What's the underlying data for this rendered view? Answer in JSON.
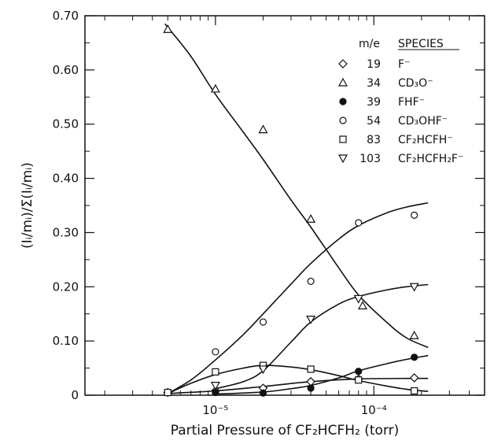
{
  "chart_data": {
    "type": "scatter",
    "xlabel": "Partial Pressure of CF₂HCFH₂ (torr)",
    "ylabel": "(Iᵢ/mᵢ)/Σ(Iᵢ/mᵢ)",
    "x_scale": "log",
    "xlim": [
      1.5e-06,
      0.0005
    ],
    "ylim": [
      0,
      0.7
    ],
    "x_ticks": [
      {
        "value": 1e-05,
        "label": "10⁻⁵"
      },
      {
        "value": 0.0001,
        "label": "10⁻⁴"
      }
    ],
    "y_ticks": [
      {
        "value": 0.0,
        "label": "0"
      },
      {
        "value": 0.1,
        "label": "0.10"
      },
      {
        "value": 0.2,
        "label": "0.20"
      },
      {
        "value": 0.3,
        "label": "0.30"
      },
      {
        "value": 0.4,
        "label": "0.40"
      },
      {
        "value": 0.5,
        "label": "0.50"
      },
      {
        "value": 0.6,
        "label": "0.60"
      },
      {
        "value": 0.7,
        "label": "0.70"
      }
    ],
    "legend": {
      "position": "top-right",
      "header_me": "m/e",
      "header_species": "SPECIES"
    },
    "series": [
      {
        "me": "19",
        "name": "F⁻",
        "marker": "diamond",
        "filled": false,
        "x": [
          5e-06,
          1e-05,
          2e-05,
          4e-05,
          8e-05,
          0.00018
        ],
        "y": [
          0.005,
          0.008,
          0.013,
          0.025,
          0.03,
          0.032
        ],
        "curve": [
          [
            5e-06,
            0.003
          ],
          [
            1e-05,
            0.008
          ],
          [
            2e-05,
            0.016
          ],
          [
            4e-05,
            0.025
          ],
          [
            8e-05,
            0.03
          ],
          [
            0.00016,
            0.031
          ],
          [
            0.00022,
            0.031
          ]
        ]
      },
      {
        "me": "34",
        "name": "CD₃O⁻",
        "marker": "triangle-up",
        "filled": false,
        "x": [
          5e-06,
          1e-05,
          2e-05,
          4e-05,
          8.5e-05,
          0.00018
        ],
        "y": [
          0.675,
          0.565,
          0.49,
          0.325,
          0.165,
          0.11
        ],
        "curve": [
          [
            4.8e-06,
            0.685
          ],
          [
            7e-06,
            0.625
          ],
          [
            1e-05,
            0.555
          ],
          [
            1.5e-05,
            0.485
          ],
          [
            2e-05,
            0.435
          ],
          [
            3e-05,
            0.36
          ],
          [
            4e-05,
            0.31
          ],
          [
            6e-05,
            0.235
          ],
          [
            8e-05,
            0.185
          ],
          [
            0.00012,
            0.135
          ],
          [
            0.00016,
            0.106
          ],
          [
            0.00022,
            0.088
          ]
        ]
      },
      {
        "me": "39",
        "name": "FHF⁻",
        "marker": "circle",
        "filled": true,
        "x": [
          1e-05,
          2e-05,
          4e-05,
          8e-05,
          0.00018
        ],
        "y": [
          0.005,
          0.004,
          0.013,
          0.044,
          0.07
        ],
        "curve": [
          [
            1e-05,
            0.002
          ],
          [
            2e-05,
            0.006
          ],
          [
            3e-05,
            0.012
          ],
          [
            4e-05,
            0.018
          ],
          [
            6e-05,
            0.032
          ],
          [
            8e-05,
            0.045
          ],
          [
            0.00012,
            0.058
          ],
          [
            0.00016,
            0.066
          ],
          [
            0.00022,
            0.073
          ]
        ]
      },
      {
        "me": "54",
        "name": "CD₃OHF⁻",
        "marker": "circle",
        "filled": false,
        "x": [
          5e-06,
          1e-05,
          2e-05,
          4e-05,
          8e-05,
          0.00018
        ],
        "y": [
          0.005,
          0.08,
          0.135,
          0.21,
          0.318,
          0.332
        ],
        "curve": [
          [
            5e-06,
            0.003
          ],
          [
            7e-06,
            0.028
          ],
          [
            1e-05,
            0.065
          ],
          [
            1.5e-05,
            0.112
          ],
          [
            2e-05,
            0.15
          ],
          [
            3e-05,
            0.205
          ],
          [
            4e-05,
            0.243
          ],
          [
            6e-05,
            0.288
          ],
          [
            8e-05,
            0.313
          ],
          [
            0.00012,
            0.336
          ],
          [
            0.00016,
            0.347
          ],
          [
            0.00022,
            0.355
          ]
        ]
      },
      {
        "me": "83",
        "name": "CF₂HCFH⁻",
        "marker": "square",
        "filled": false,
        "x": [
          5e-06,
          1e-05,
          2e-05,
          4e-05,
          8e-05,
          0.00018
        ],
        "y": [
          0.005,
          0.043,
          0.055,
          0.048,
          0.028,
          0.008
        ],
        "curve": [
          [
            5e-06,
            0.003
          ],
          [
            7e-06,
            0.022
          ],
          [
            1e-05,
            0.038
          ],
          [
            1.5e-05,
            0.05
          ],
          [
            2e-05,
            0.055
          ],
          [
            3e-05,
            0.052
          ],
          [
            4e-05,
            0.047
          ],
          [
            6e-05,
            0.036
          ],
          [
            8e-05,
            0.027
          ],
          [
            0.00012,
            0.017
          ],
          [
            0.00016,
            0.011
          ],
          [
            0.00022,
            0.007
          ]
        ]
      },
      {
        "me": "103",
        "name": "CF₂HCFH₂F⁻",
        "marker": "triangle-down",
        "filled": false,
        "x": [
          1e-05,
          2e-05,
          4e-05,
          8e-05,
          0.00018
        ],
        "y": [
          0.018,
          0.048,
          0.14,
          0.178,
          0.2
        ],
        "curve": [
          [
            1e-05,
            0.012
          ],
          [
            1.5e-05,
            0.025
          ],
          [
            2e-05,
            0.045
          ],
          [
            3e-05,
            0.098
          ],
          [
            4e-05,
            0.135
          ],
          [
            6e-05,
            0.168
          ],
          [
            8e-05,
            0.182
          ],
          [
            0.00012,
            0.194
          ],
          [
            0.00016,
            0.2
          ],
          [
            0.00022,
            0.204
          ]
        ]
      }
    ]
  }
}
